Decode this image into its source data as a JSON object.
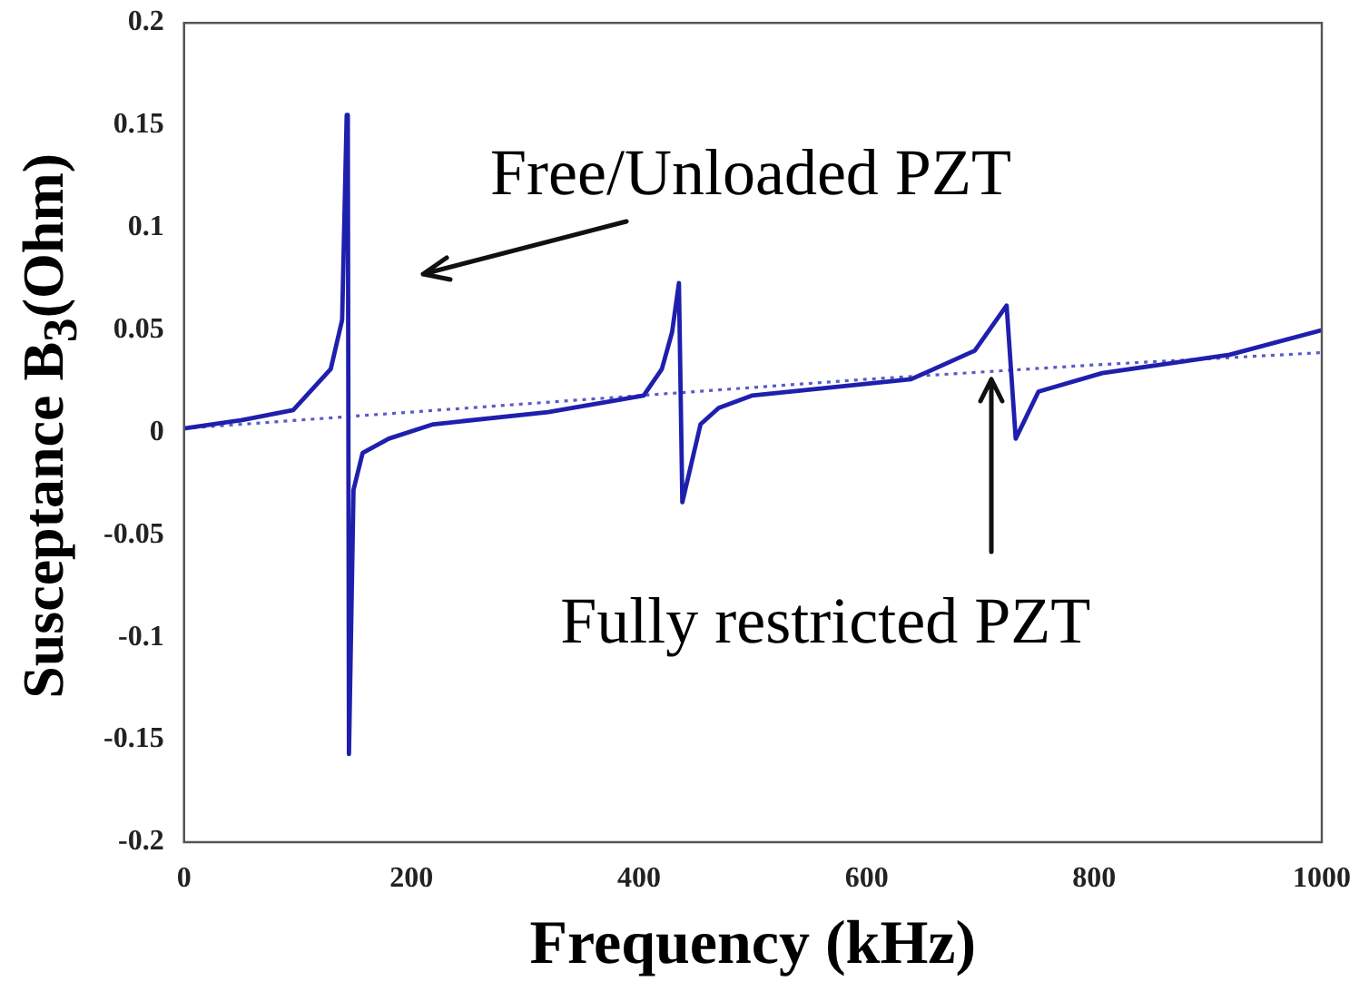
{
  "chart_data": {
    "type": "line",
    "xlabel": "Frequency (kHz)",
    "ylabel": "Susceptance B$_{3}$(Ohm)",
    "xlim": [
      0,
      1000
    ],
    "xticks": [
      0,
      200,
      400,
      600,
      800,
      1000
    ],
    "ylim": [
      -0.2,
      0.2
    ],
    "yticks": [
      -0.2,
      -0.15,
      -0.1,
      -0.05,
      0,
      0.05,
      0.1,
      0.15,
      0.2
    ],
    "grid": false,
    "legend": false,
    "marker": "none",
    "series": [
      {
        "color": "#1f1fae",
        "line_style": "solid",
        "x": [
          0,
          50,
          96,
          129,
          139,
          143,
          144,
          145,
          149,
          157,
          180,
          219,
          320,
          404,
          420,
          429,
          435,
          438,
          454,
          470,
          499,
          639,
          695,
          723,
          731,
          751,
          807,
          919,
          1000
        ],
        "values": [
          0.002,
          0.006,
          0.011,
          0.031,
          0.055,
          0.155,
          0.155,
          -0.157,
          -0.028,
          -0.01,
          -0.003,
          0.004,
          0.01,
          0.018,
          0.031,
          0.049,
          0.073,
          -0.034,
          0.004,
          0.012,
          0.018,
          0.026,
          0.04,
          0.062,
          -0.003,
          0.02,
          0.029,
          0.038,
          0.05
        ]
      },
      {
        "color": "#5a5ac8",
        "line_style": "dotted",
        "x": [
          0,
          200,
          400,
          600,
          800,
          1000
        ],
        "values": [
          0.002,
          0.01,
          0.018,
          0.026,
          0.033,
          0.039
        ]
      }
    ],
    "annotations": [
      "Free/Unloaded PZT",
      {
        "text": "Fully restricted PZT",
        "x": 709,
        "y": 0.027
      }
    ]
  }
}
